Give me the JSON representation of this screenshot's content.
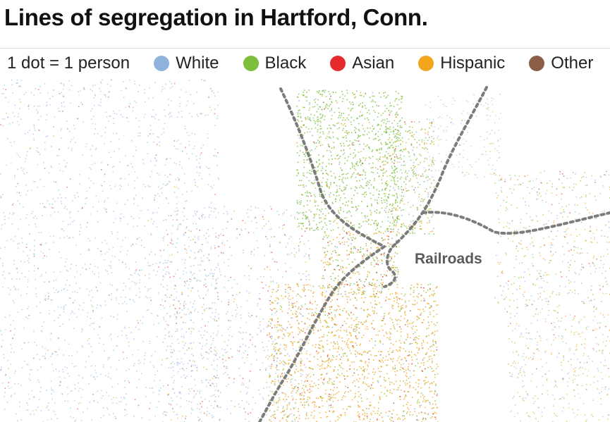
{
  "title": "Lines of segregation in Hartford, Conn.",
  "legend": {
    "scale_label": "1 dot = 1 person",
    "items": [
      {
        "label": "White",
        "color": "#8fb3dc"
      },
      {
        "label": "Black",
        "color": "#7cbf3c"
      },
      {
        "label": "Asian",
        "color": "#e52b2b"
      },
      {
        "label": "Hispanic",
        "color": "#f2a51b"
      },
      {
        "label": "Other",
        "color": "#8b5f45"
      }
    ]
  },
  "map": {
    "railroad_label": "Railroads",
    "railroad_color": "#7c7c7c"
  }
}
